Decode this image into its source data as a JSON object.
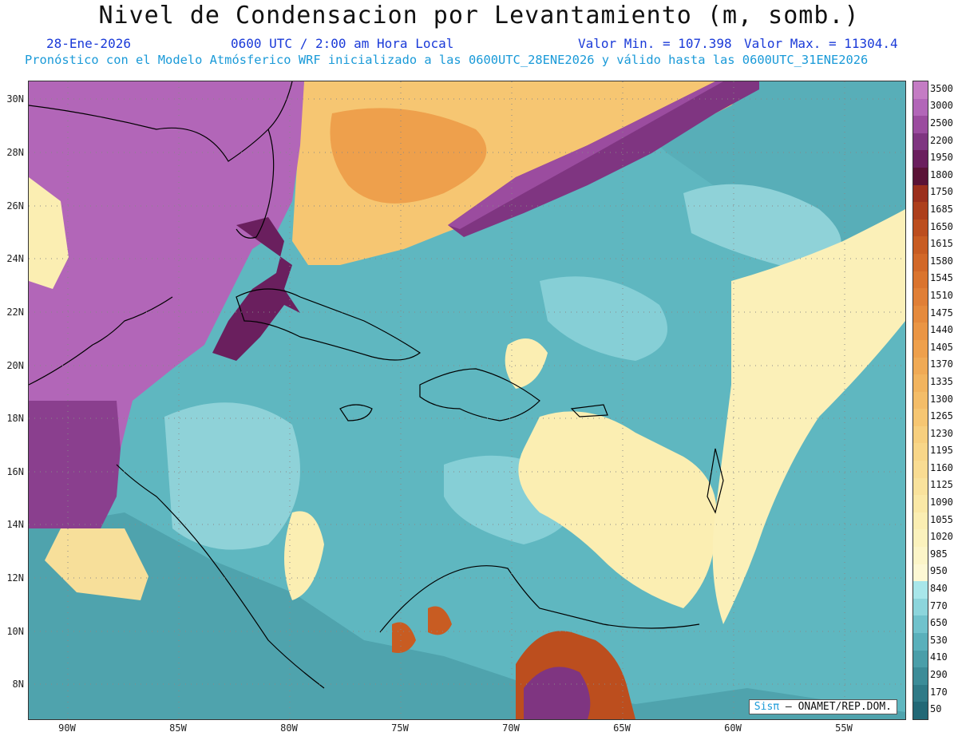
{
  "header": {
    "title": "Nivel de Condensacion por Levantamiento (m, somb.)",
    "date": "28-Ene-2026",
    "time": "0600 UTC / 2:00 am Hora Local",
    "min_label": "Valor Min. = 107.398",
    "max_label": "Valor Max. = 11304.4",
    "forecast": "Pronóstico con el Modelo Atmósferico WRF inicializado a las 0600UTC_28ENE2026 y válido hasta las  0600UTC_31ENE2026"
  },
  "map": {
    "lat_labels": [
      "30N",
      "28N",
      "26N",
      "24N",
      "22N",
      "20N",
      "18N",
      "16N",
      "14N",
      "12N",
      "10N",
      "8N"
    ],
    "lon_labels": [
      "90W",
      "85W",
      "80W",
      "75W",
      "70W",
      "65W",
      "60W",
      "55W"
    ],
    "credit_sis": "Sisπ",
    "credit_rest": " – ONAMET/REP.DOM."
  },
  "legend": {
    "labels": [
      "3500",
      "3000",
      "2500",
      "2200",
      "1950",
      "1800",
      "1750",
      "1685",
      "1650",
      "1615",
      "1580",
      "1545",
      "1510",
      "1475",
      "1440",
      "1405",
      "1370",
      "1335",
      "1300",
      "1265",
      "1230",
      "1195",
      "1160",
      "1125",
      "1090",
      "1055",
      "1020",
      "985",
      "950",
      "840",
      "770",
      "650",
      "530",
      "410",
      "290",
      "170",
      "50"
    ],
    "colors": [
      "#c47cc4",
      "#b266b8",
      "#9b4c9f",
      "#7f3581",
      "#6a1f5e",
      "#5a1336",
      "#9b2f1c",
      "#ad3f1c",
      "#bc4e1e",
      "#c85c22",
      "#d26828",
      "#da742e",
      "#e07f36",
      "#e58a3c",
      "#ea9544",
      "#eea04c",
      "#f0aa55",
      "#f2b45e",
      "#f4bd68",
      "#f6c672",
      "#f7cf7e",
      "#f8d688",
      "#f9dc92",
      "#f9e29c",
      "#faE8a6",
      "#fbeeb2",
      "#fbf2bd",
      "#fcf5c8",
      "#fdf8d4",
      "#a8e6ea",
      "#8cd5dc",
      "#70c2cc",
      "#5ab0bb",
      "#4a9ea9",
      "#3c8c98",
      "#2f7a87",
      "#226876"
    ]
  }
}
